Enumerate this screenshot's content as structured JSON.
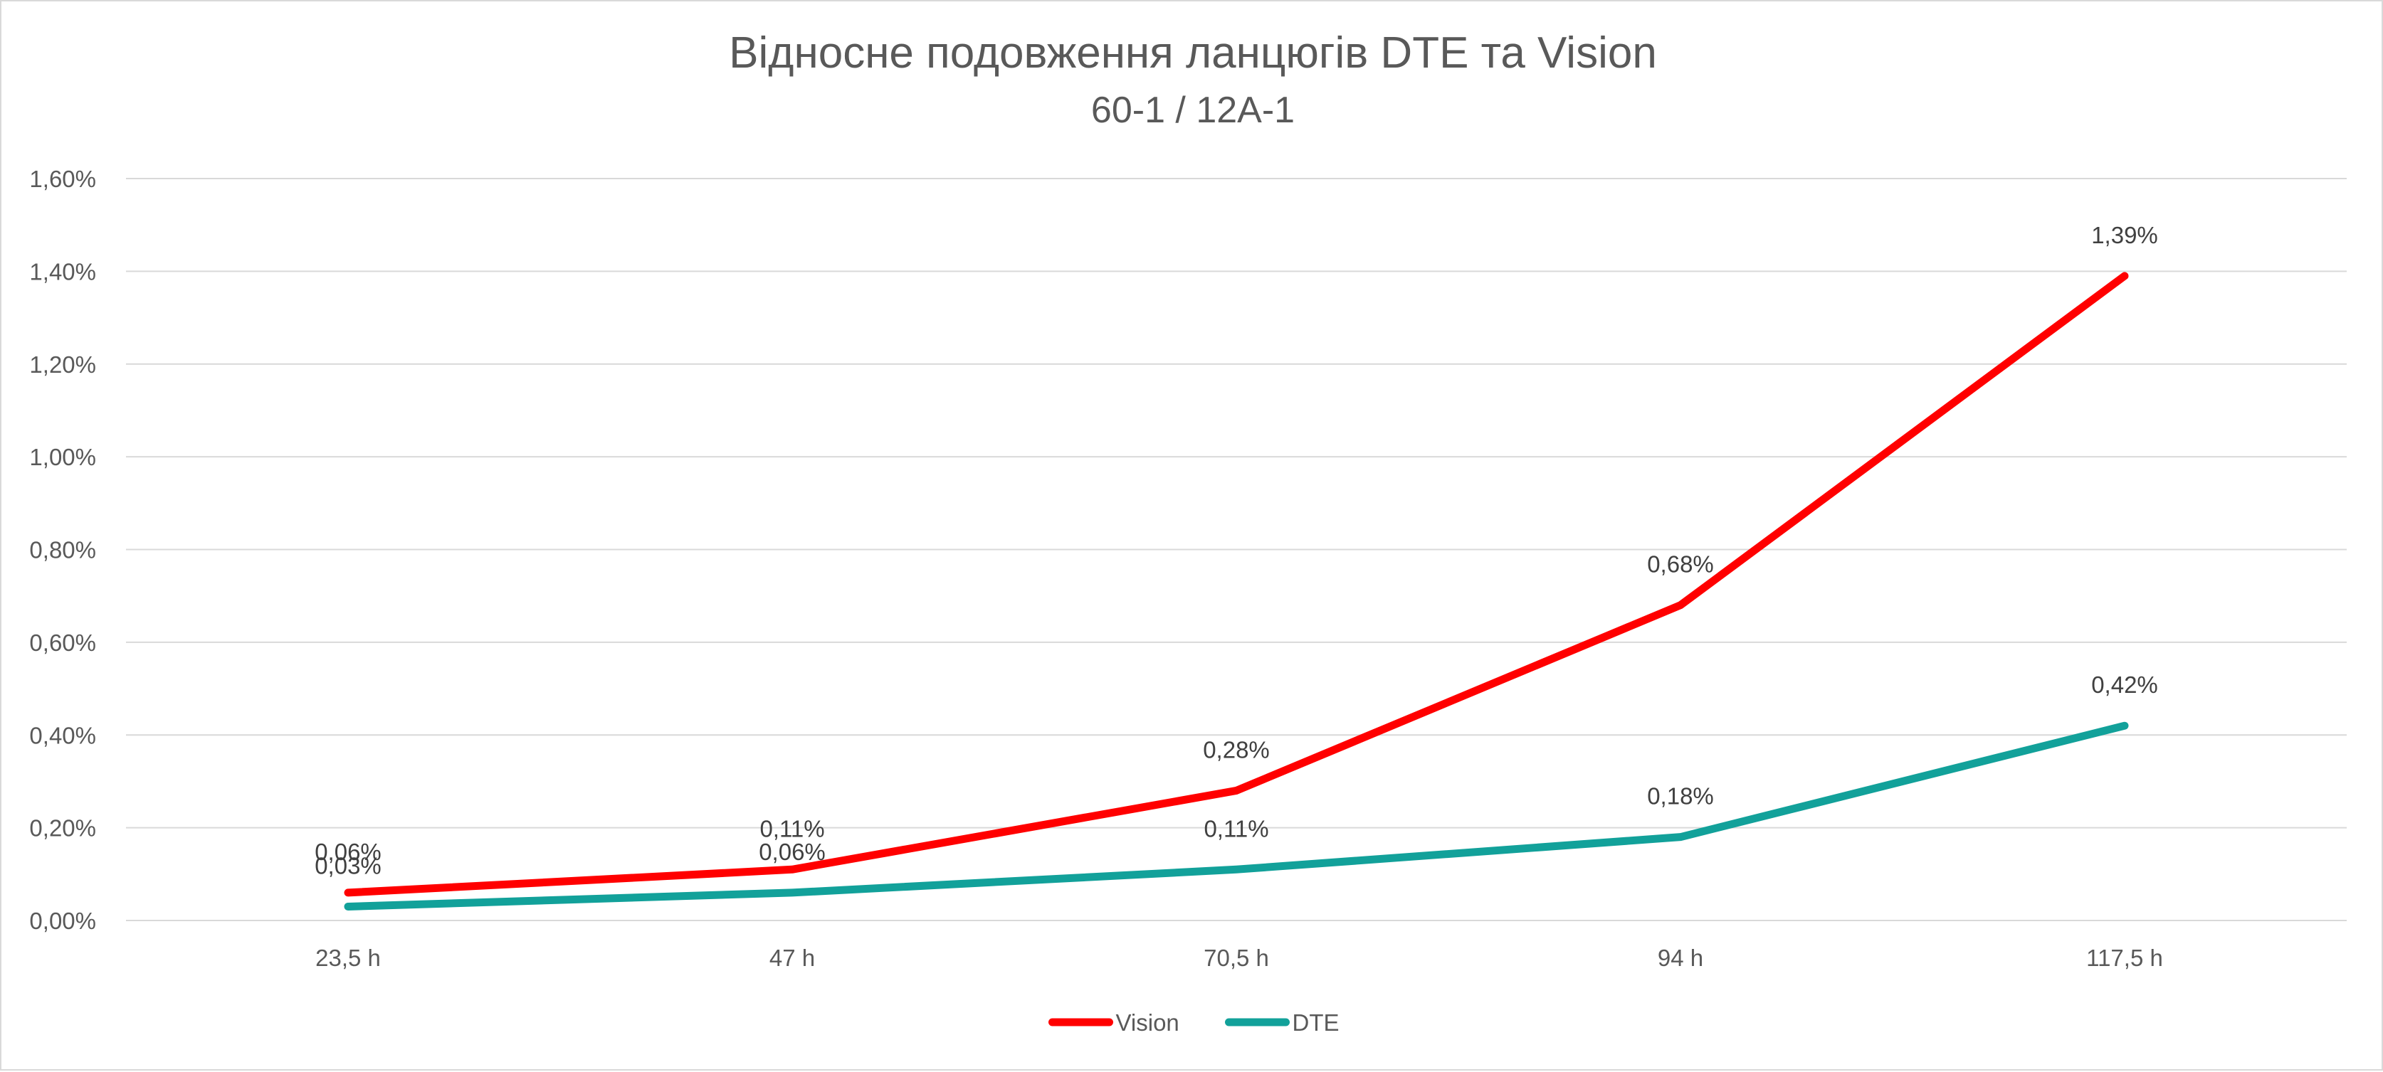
{
  "chart_data": {
    "type": "line",
    "title": "Відносне подовження ланцюгів DTE та Vision",
    "subtitle": "60-1 / 12A-1",
    "categories": [
      "23,5 h",
      "47 h",
      "70,5 h",
      "94 h",
      "117,5 h"
    ],
    "series": [
      {
        "name": "Vision",
        "color": "#ff0000",
        "values": [
          0.06,
          0.11,
          0.28,
          0.68,
          1.39
        ],
        "labels": [
          "0,06%",
          "0,11%",
          "0,28%",
          "0,68%",
          "1,39%"
        ]
      },
      {
        "name": "DTE",
        "color": "#12a19a",
        "values": [
          0.03,
          0.06,
          0.11,
          0.18,
          0.42
        ],
        "labels": [
          "0,03%",
          "0,06%",
          "0,11%",
          "0,18%",
          "0,42%"
        ]
      }
    ],
    "ylim": [
      0,
      1.6
    ],
    "y_ticks": [
      0,
      0.2,
      0.4,
      0.6,
      0.8,
      1.0,
      1.2,
      1.4,
      1.6
    ],
    "y_tick_labels": [
      "0,00%",
      "0,20%",
      "0,40%",
      "0,60%",
      "0,80%",
      "1,00%",
      "1,20%",
      "1,40%",
      "1,60%"
    ],
    "xlabel": "",
    "ylabel": "",
    "grid": true,
    "legend": "bottom"
  }
}
